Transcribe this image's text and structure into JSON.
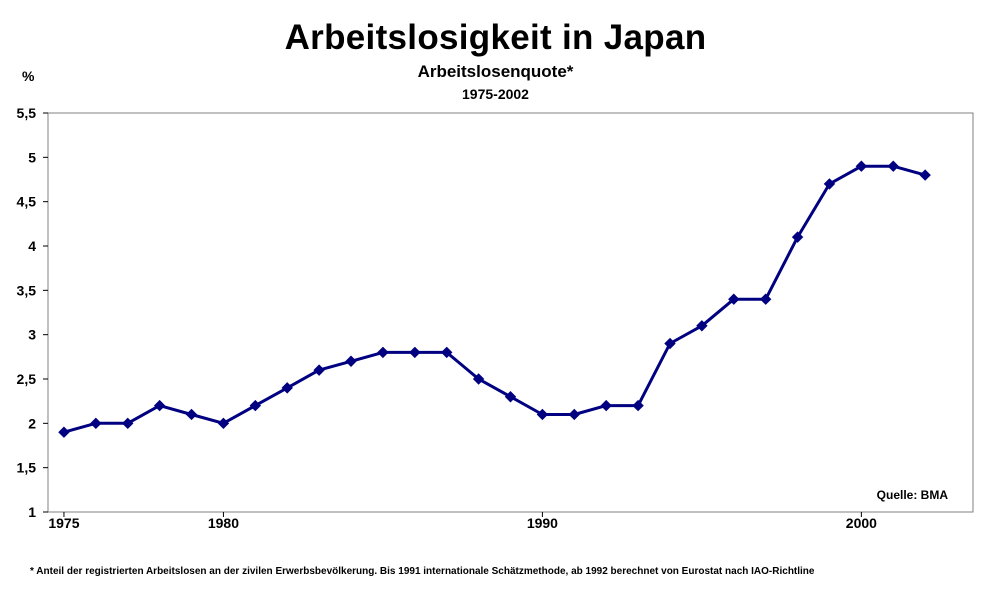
{
  "chart_data": {
    "type": "line",
    "title": "Arbeitslosigkeit in Japan",
    "subtitle": "Arbeitslosenquote*",
    "period": "1975-2002",
    "ylabel": "%",
    "source": "Quelle: BMA",
    "footnote": "* Anteil der registrierten Arbeitslosen an der zivilen Erwerbsbevölkerung. Bis 1991 internationale Schätzmethode, ab 1992 berechnet von Eurostat nach IAO-Richtline",
    "ylim": [
      1,
      5.5
    ],
    "xlim": [
      1974.5,
      2003.5
    ],
    "ytick_values": [
      1,
      1.5,
      2,
      2.5,
      3,
      3.5,
      4,
      4.5,
      5,
      5.5
    ],
    "ytick_labels": [
      "1",
      "1,5",
      "2",
      "2,5",
      "3",
      "3,5",
      "4",
      "4,5",
      "5",
      "5,5"
    ],
    "xtick_values": [
      1975,
      1980,
      1990,
      2000
    ],
    "xtick_labels": [
      "1975",
      "1980",
      "1990",
      "2000"
    ],
    "grid": false,
    "color": "#000080",
    "series": [
      {
        "x": [
          1975,
          1976,
          1977,
          1978,
          1979,
          1980,
          1981,
          1982,
          1983,
          1984,
          1985,
          1986,
          1987,
          1988,
          1989,
          1990,
          1991,
          1992,
          1993,
          1994,
          1995,
          1996,
          1997,
          1998,
          1999,
          2000,
          2001,
          2002
        ],
        "values": [
          1.9,
          2.0,
          2.0,
          2.2,
          2.1,
          2.0,
          2.2,
          2.4,
          2.6,
          2.7,
          2.8,
          2.8,
          2.8,
          2.5,
          2.3,
          2.1,
          2.1,
          2.2,
          2.2,
          2.9,
          3.1,
          3.4,
          3.4,
          4.1,
          4.7,
          4.9,
          4.9,
          4.8
        ]
      }
    ]
  }
}
